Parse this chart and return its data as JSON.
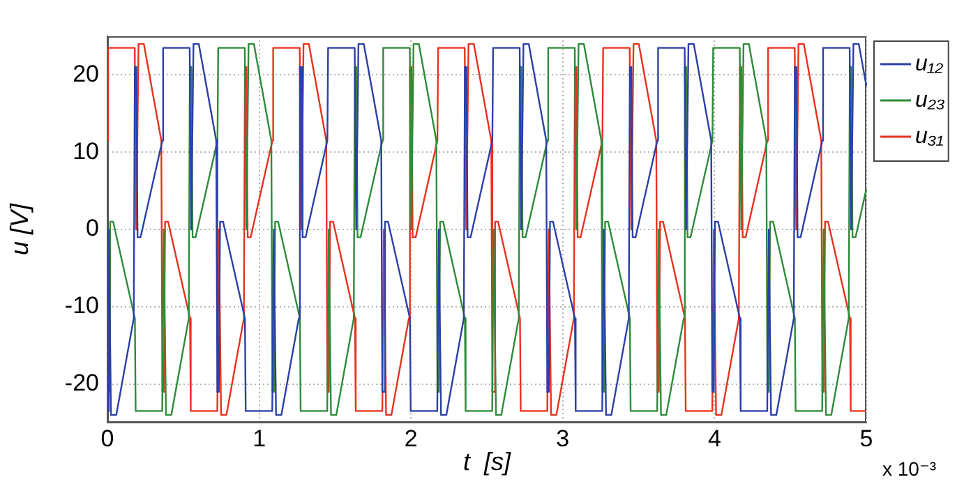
{
  "chart_data": {
    "type": "line",
    "xlabel": "t  [s]",
    "ylabel": "u [V]",
    "annotations": [
      "x 10⁻³"
    ],
    "xlim": [
      0,
      5
    ],
    "xticks": [
      0,
      1,
      2,
      3,
      4,
      5
    ],
    "ylim": [
      -25,
      25
    ],
    "yticks": [
      -20,
      -10,
      0,
      10,
      20
    ],
    "grid": true,
    "legend": "top right",
    "series": [
      {
        "name": "u₁₂",
        "color": "#2b3fa8",
        "x": [
          0,
          0.0085,
          0.0235,
          0.0585,
          0.1735,
          0.1805,
          0.1905,
          0.1985,
          0.2185,
          0.362,
          0.367,
          0.542,
          0.552,
          0.567,
          0.602,
          0.717,
          0.724,
          0.734,
          0.742,
          0.762,
          0.906,
          0.911,
          1.086,
          1.096,
          1.111,
          1.146,
          1.261,
          1.268,
          1.278,
          1.286,
          1.306,
          1.449,
          1.454,
          1.629,
          1.639,
          1.654,
          1.689,
          1.804,
          1.811,
          1.821,
          1.829,
          1.849,
          1.993,
          1.998,
          2.173,
          2.183,
          2.198,
          2.233,
          2.348,
          2.355,
          2.365,
          2.373,
          2.393,
          2.536,
          2.541,
          2.716,
          2.726,
          2.741,
          2.776,
          2.891,
          2.898,
          2.908,
          2.916,
          2.936,
          3.08,
          3.085,
          3.26,
          3.27,
          3.285,
          3.32,
          3.435,
          3.442,
          3.452,
          3.46,
          3.48,
          3.623,
          3.628,
          3.803,
          3.813,
          3.828,
          3.863,
          3.978,
          3.985,
          3.995,
          4.003,
          4.023,
          4.167,
          4.172,
          4.347,
          4.357,
          4.372,
          4.407,
          4.522,
          4.529,
          4.539,
          4.547,
          4.567,
          4.71,
          4.715,
          4.89,
          4.9,
          4.915,
          4.95,
          5
        ],
        "values": [
          -23.5,
          0,
          -24,
          -24,
          -11.5,
          21,
          21,
          -1,
          -1,
          11.5,
          23.5,
          23.5,
          0,
          24,
          24,
          11.5,
          -21,
          -21,
          1,
          1,
          -11.5,
          -23.5,
          -23.5,
          0,
          -24,
          -24,
          -11.5,
          21,
          21,
          -1,
          -1,
          11.5,
          23.5,
          23.5,
          0,
          24,
          24,
          11.5,
          -21,
          -21,
          1,
          1,
          -11.5,
          -23.5,
          -23.5,
          0,
          -24,
          -24,
          -11.5,
          21,
          21,
          -1,
          -1,
          11.5,
          23.5,
          23.5,
          0,
          24,
          24,
          11.5,
          -21,
          -21,
          1,
          1,
          -11.5,
          -23.5,
          -23.5,
          0,
          -24,
          -24,
          -11.5,
          21,
          21,
          -1,
          -1,
          11.5,
          23.5,
          23.5,
          0,
          24,
          24,
          11.5,
          -21,
          -21,
          1,
          1,
          -11.5,
          -23.5,
          -23.5,
          0,
          -24,
          -24,
          -11.5,
          21,
          21,
          -1,
          -1,
          11.5,
          23.5,
          23.5,
          0,
          24,
          24,
          18.6
        ]
      },
      {
        "name": "u₂₃",
        "color": "#2e8b3a",
        "x": [
          0,
          0.01,
          0.018,
          0.038,
          0.181,
          0.186,
          0.361,
          0.371,
          0.386,
          0.421,
          0.536,
          0.543,
          0.553,
          0.561,
          0.581,
          0.725,
          0.73,
          0.905,
          0.915,
          0.93,
          0.965,
          1.08,
          1.087,
          1.097,
          1.105,
          1.125,
          1.268,
          1.273,
          1.448,
          1.458,
          1.473,
          1.508,
          1.623,
          1.63,
          1.64,
          1.648,
          1.668,
          1.812,
          1.817,
          1.992,
          2.002,
          2.017,
          2.052,
          2.167,
          2.174,
          2.184,
          2.192,
          2.212,
          2.355,
          2.36,
          2.535,
          2.545,
          2.56,
          2.595,
          2.71,
          2.717,
          2.727,
          2.735,
          2.755,
          2.899,
          2.904,
          3.079,
          3.089,
          3.104,
          3.139,
          3.254,
          3.261,
          3.271,
          3.279,
          3.299,
          3.442,
          3.447,
          3.622,
          3.632,
          3.647,
          3.682,
          3.797,
          3.804,
          3.814,
          3.822,
          3.842,
          3.986,
          3.991,
          4.166,
          4.176,
          4.191,
          4.226,
          4.341,
          4.348,
          4.358,
          4.366,
          4.386,
          4.529,
          4.534,
          4.709,
          4.719,
          4.734,
          4.769,
          4.884,
          4.891,
          4.901,
          4.909,
          4.929,
          5
        ],
        "values": [
          -21,
          -21,
          1,
          1,
          -11.5,
          -23.5,
          -23.5,
          0,
          -24,
          -24,
          -11.5,
          21,
          21,
          -1,
          -1,
          11.5,
          23.5,
          23.5,
          0,
          24,
          24,
          11.5,
          -21,
          -21,
          1,
          1,
          -11.5,
          -23.5,
          -23.5,
          0,
          -24,
          -24,
          -11.5,
          21,
          21,
          -1,
          -1,
          11.5,
          23.5,
          23.5,
          0,
          24,
          24,
          11.5,
          -21,
          -21,
          1,
          1,
          -11.5,
          -23.5,
          -23.5,
          0,
          -24,
          -24,
          -11.5,
          21,
          21,
          -1,
          -1,
          11.5,
          23.5,
          23.5,
          0,
          24,
          24,
          11.5,
          -21,
          -21,
          1,
          1,
          -11.5,
          -23.5,
          -23.5,
          0,
          -24,
          -24,
          -11.5,
          21,
          21,
          -1,
          -1,
          11.5,
          23.5,
          23.5,
          0,
          24,
          24,
          11.5,
          -21,
          -21,
          1,
          1,
          -11.5,
          -23.5,
          -23.5,
          0,
          -24,
          -24,
          -11.5,
          21,
          21,
          -1,
          -1,
          5.2
        ]
      },
      {
        "name": "u₃₁",
        "color": "#e8321e",
        "x": [
          0,
          0.005,
          0.18,
          0.19,
          0.205,
          0.24,
          0.355,
          0.362,
          0.372,
          0.38,
          0.4,
          0.544,
          0.549,
          0.724,
          0.734,
          0.749,
          0.784,
          0.899,
          0.906,
          0.916,
          0.924,
          0.944,
          1.087,
          1.092,
          1.267,
          1.277,
          1.292,
          1.327,
          1.442,
          1.449,
          1.459,
          1.467,
          1.487,
          1.631,
          1.636,
          1.811,
          1.821,
          1.836,
          1.871,
          1.986,
          1.993,
          2.003,
          2.011,
          2.031,
          2.174,
          2.179,
          2.354,
          2.364,
          2.379,
          2.414,
          2.529,
          2.536,
          2.546,
          2.554,
          2.574,
          2.718,
          2.723,
          2.898,
          2.908,
          2.923,
          2.958,
          3.073,
          3.08,
          3.09,
          3.098,
          3.118,
          3.261,
          3.266,
          3.441,
          3.451,
          3.466,
          3.501,
          3.616,
          3.623,
          3.633,
          3.641,
          3.661,
          3.805,
          3.81,
          3.985,
          3.995,
          4.01,
          4.045,
          4.16,
          4.167,
          4.177,
          4.185,
          4.205,
          4.348,
          4.353,
          4.528,
          4.538,
          4.553,
          4.588,
          4.703,
          4.71,
          4.72,
          4.728,
          4.748,
          4.892,
          4.897,
          5
        ],
        "values": [
          11.5,
          23.5,
          23.5,
          0,
          24,
          24,
          11.5,
          -21,
          -21,
          1,
          1,
          -11.5,
          -23.5,
          -23.5,
          0,
          -24,
          -24,
          -11.5,
          21,
          21,
          -1,
          -1,
          11.5,
          23.5,
          23.5,
          0,
          24,
          24,
          11.5,
          -21,
          -21,
          1,
          1,
          -11.5,
          -23.5,
          -23.5,
          0,
          -24,
          -24,
          -11.5,
          21,
          21,
          -1,
          -1,
          11.5,
          23.5,
          23.5,
          0,
          24,
          24,
          11.5,
          -21,
          -21,
          1,
          1,
          -11.5,
          -23.5,
          -23.5,
          0,
          -24,
          -24,
          -11.5,
          21,
          21,
          -1,
          -1,
          11.5,
          23.5,
          23.5,
          0,
          24,
          24,
          11.5,
          -21,
          -21,
          1,
          1,
          -11.5,
          -23.5,
          -23.5,
          0,
          -24,
          -24,
          -11.5,
          21,
          21,
          -1,
          -1,
          11.5,
          23.5,
          23.5,
          0,
          24,
          24,
          11.5,
          -21,
          -21,
          1,
          1,
          -11.5,
          -23.5,
          -23.5
        ]
      }
    ]
  }
}
